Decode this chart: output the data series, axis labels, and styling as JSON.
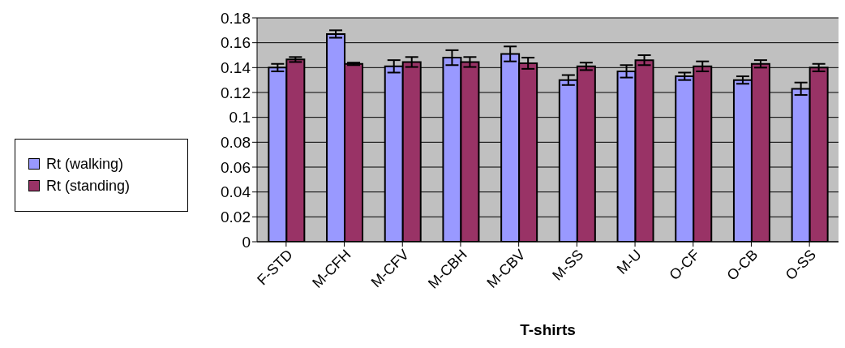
{
  "chart_data": {
    "type": "bar",
    "xlabel": "T-shirts",
    "categories": [
      "F-STD",
      "M-CFH",
      "M-CFV",
      "M-CBH",
      "M-CBV",
      "M-SS",
      "M-U",
      "O-CF",
      "O-CB",
      "O-SS"
    ],
    "series": [
      {
        "name": "Rt (walking)",
        "color": "#9999ff",
        "values": [
          0.14,
          0.167,
          0.141,
          0.148,
          0.151,
          0.13,
          0.137,
          0.133,
          0.13,
          0.123
        ],
        "errors": [
          0.003,
          0.003,
          0.005,
          0.006,
          0.006,
          0.004,
          0.005,
          0.003,
          0.003,
          0.005
        ]
      },
      {
        "name": "Rt (standing)",
        "color": "#993366",
        "values": [
          0.1465,
          0.143,
          0.1445,
          0.1445,
          0.1435,
          0.141,
          0.146,
          0.141,
          0.143,
          0.14
        ],
        "errors": [
          0.002,
          0.001,
          0.004,
          0.004,
          0.0045,
          0.003,
          0.004,
          0.004,
          0.003,
          0.003
        ]
      }
    ],
    "ylim": [
      0,
      0.18
    ],
    "yticks": [
      0,
      0.02,
      0.04,
      0.06,
      0.08,
      0.1,
      0.12,
      0.14,
      0.16,
      0.18
    ],
    "grid": "y",
    "legend": "left"
  }
}
